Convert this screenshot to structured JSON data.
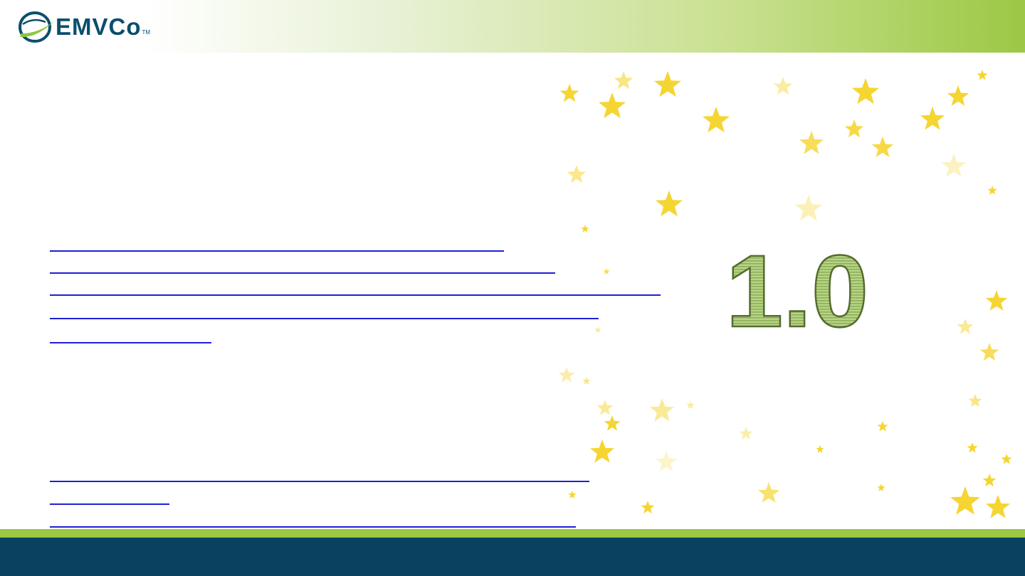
{
  "header": {
    "logo_text": "EMVCo",
    "logo_tm": "TM"
  },
  "version_label": "1.0",
  "colors": {
    "header_green": "#9cc845",
    "footer_blue": "#0b4160",
    "link_blue": "#1f1fd6",
    "version_fill": "#a9c870",
    "star_yellow": "#f5d531"
  },
  "hyperlink_group_1": {
    "line_count": 5
  },
  "hyperlink_group_2": {
    "line_count": 3
  },
  "decoration": {
    "icon": "star-field"
  }
}
